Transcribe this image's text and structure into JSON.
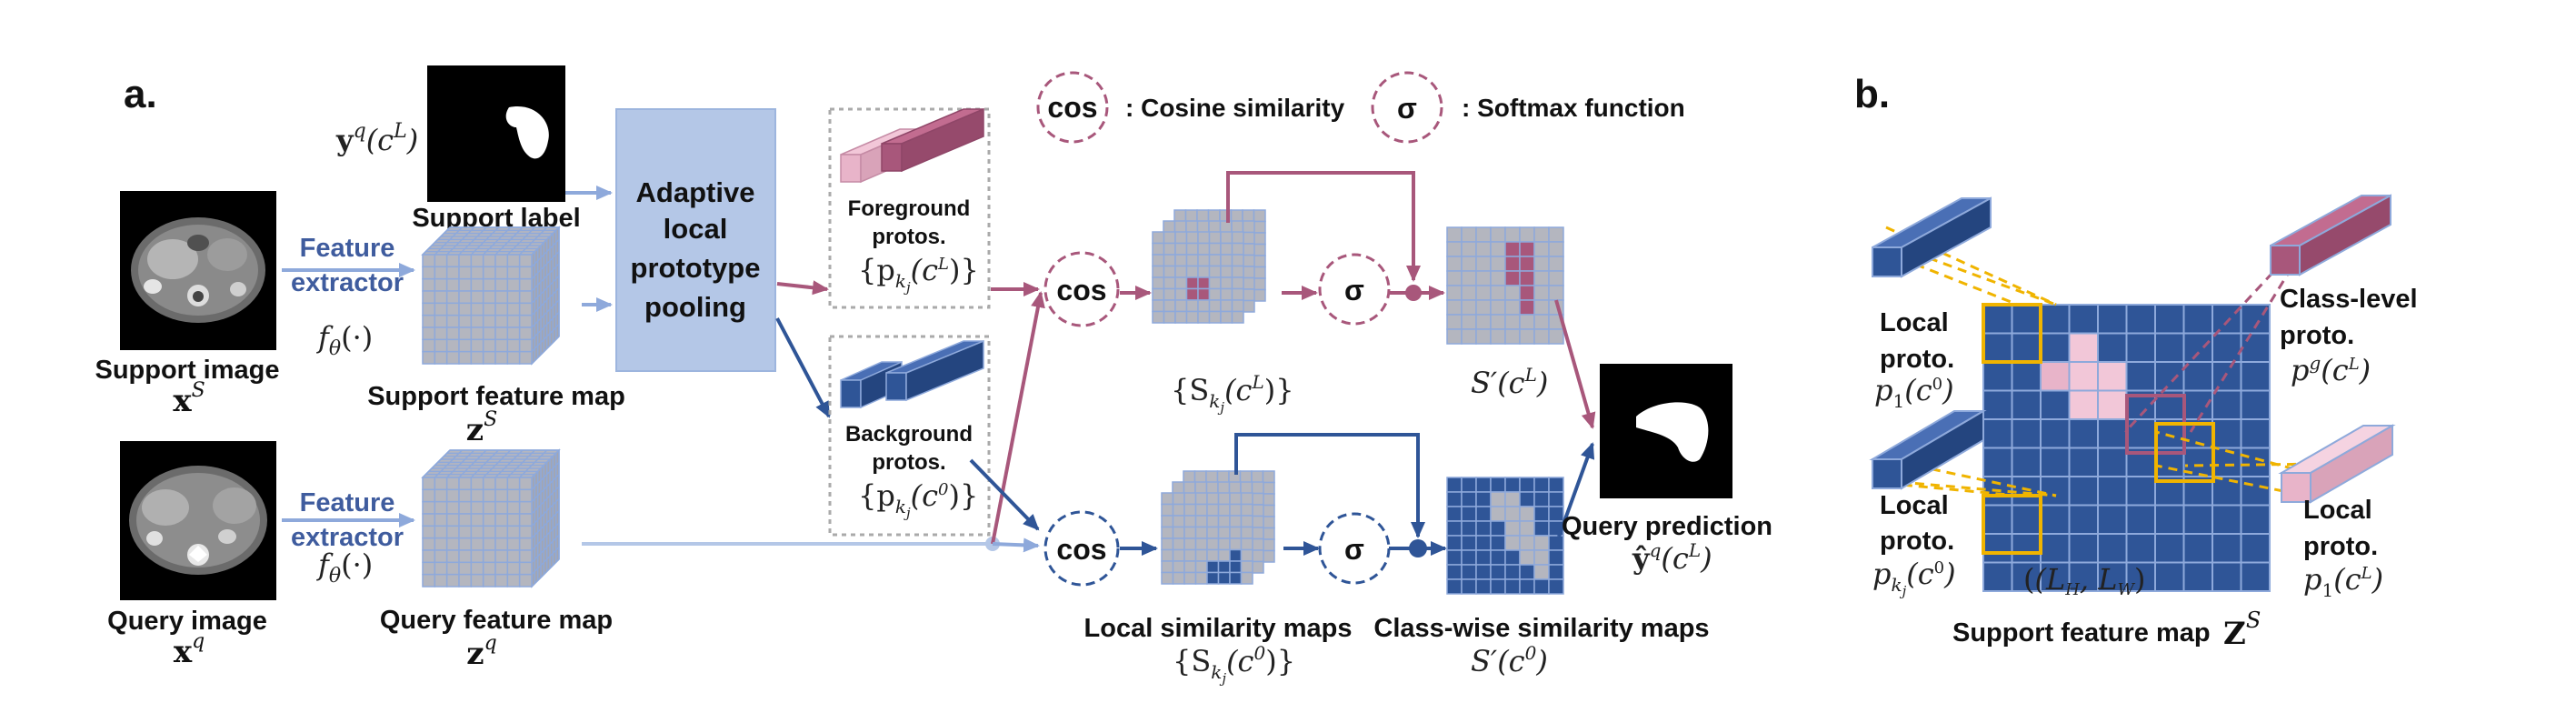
{
  "panel_a": {
    "panel_label": "a.",
    "legend": {
      "cos_symbol": "cos",
      "cos_text": ": Cosine similarity",
      "sigma_symbol": "σ",
      "sigma_text": ": Softmax function"
    },
    "support": {
      "label_math": "y",
      "label_math_sup": "q",
      "label_math_arg": "(c",
      "label_math_arg_sup": "L",
      "label_math_close": ")",
      "support_label": "Support label",
      "image_label": "Support image",
      "image_math": "x",
      "image_math_sup": "S",
      "extractor_line1": "Feature",
      "extractor_line2": "extractor",
      "extractor_math": "f",
      "extractor_math_sub": "θ",
      "extractor_math_rest": "(·)",
      "feature_map_label": "Support feature map",
      "feature_map_math": "z",
      "feature_map_math_sup": "S"
    },
    "query": {
      "image_label": "Query image",
      "image_math": "x",
      "image_math_sup": "q",
      "extractor_line1": "Feature",
      "extractor_line2": "extractor",
      "extractor_math": "f",
      "extractor_math_sub": "θ",
      "extractor_math_rest": "(·)",
      "feature_map_label": "Query feature map",
      "feature_map_math": "z",
      "feature_map_math_sup": "q"
    },
    "pooling": {
      "line1": "Adaptive",
      "line2": "local",
      "line3": "prototype",
      "line4": "pooling"
    },
    "fg_protos": {
      "line1": "Foreground",
      "line2": "protos.",
      "math": "{p",
      "math_sub": "k",
      "math_subsub": "j",
      "math_arg": "(c",
      "math_arg_sup": "L",
      "math_close": ")}"
    },
    "bg_protos": {
      "line1": "Background",
      "line2": "protos.",
      "math": "{p",
      "math_sub": "k",
      "math_subsub": "j",
      "math_arg": "(c",
      "math_arg_sup": "0",
      "math_close": ")}"
    },
    "cos_label": "cos",
    "sigma_label": "σ",
    "fg_sim": {
      "math": "{S",
      "math_sub": "k",
      "math_subsub": "j",
      "math_arg": "(c",
      "math_arg_sup": "L",
      "math_close": ")}"
    },
    "fg_class": {
      "math": "S′(c",
      "math_sup": "L",
      "math_close": ")"
    },
    "bg_sim": {
      "label": "Local similarity maps",
      "math": "{S",
      "math_sub": "k",
      "math_subsub": "j",
      "math_arg": "(c",
      "math_arg_sup": "0",
      "math_close": ")}"
    },
    "bg_class": {
      "label": "Class-wise similarity maps",
      "math": "S′(c",
      "math_sup": "0",
      "math_close": ")"
    },
    "prediction": {
      "label": "Query prediction",
      "math": "ŷ",
      "math_sup": "q",
      "math_arg": "(c",
      "math_arg_sup": "L",
      "math_close": ")"
    }
  },
  "panel_b": {
    "panel_label": "b.",
    "local_proto_top": {
      "line1": "Local",
      "line2": "proto.",
      "math": "p",
      "math_sub": "1",
      "math_arg": "(c",
      "math_arg_sup": "0",
      "math_close": ")"
    },
    "local_proto_mid": {
      "line1": "Local",
      "line2": "proto.",
      "math": "p",
      "math_sub": "k",
      "math_subsub": "j",
      "math_arg": "(c",
      "math_arg_sup": "0",
      "math_close": ")"
    },
    "class_proto": {
      "line1": "Class-level",
      "line2": "proto.",
      "math": "p",
      "math_sup": "g",
      "math_arg": "(c",
      "math_arg_sup": "L",
      "math_close": ")"
    },
    "local_proto_right": {
      "line1": "Local",
      "line2": "proto.",
      "math": "p",
      "math_sub": "1",
      "math_arg": "(c",
      "math_arg_sup": "L",
      "math_close": ")"
    },
    "window_math": "(L",
    "window_math_h": "H",
    "window_math_mid": ", L",
    "window_math_w": "W",
    "window_math_close": ")",
    "feature_map_label": "Support feature map",
    "feature_map_math": "Z",
    "feature_map_math_sup": "S"
  },
  "colors": {
    "blue_arrow": "#8ea9db",
    "dark_blue": "#2f5597",
    "pink": "#a8577b",
    "grid_fill": "#b4b6bf",
    "pool_box": "#b4c7e7",
    "orange": "#f0b400"
  }
}
